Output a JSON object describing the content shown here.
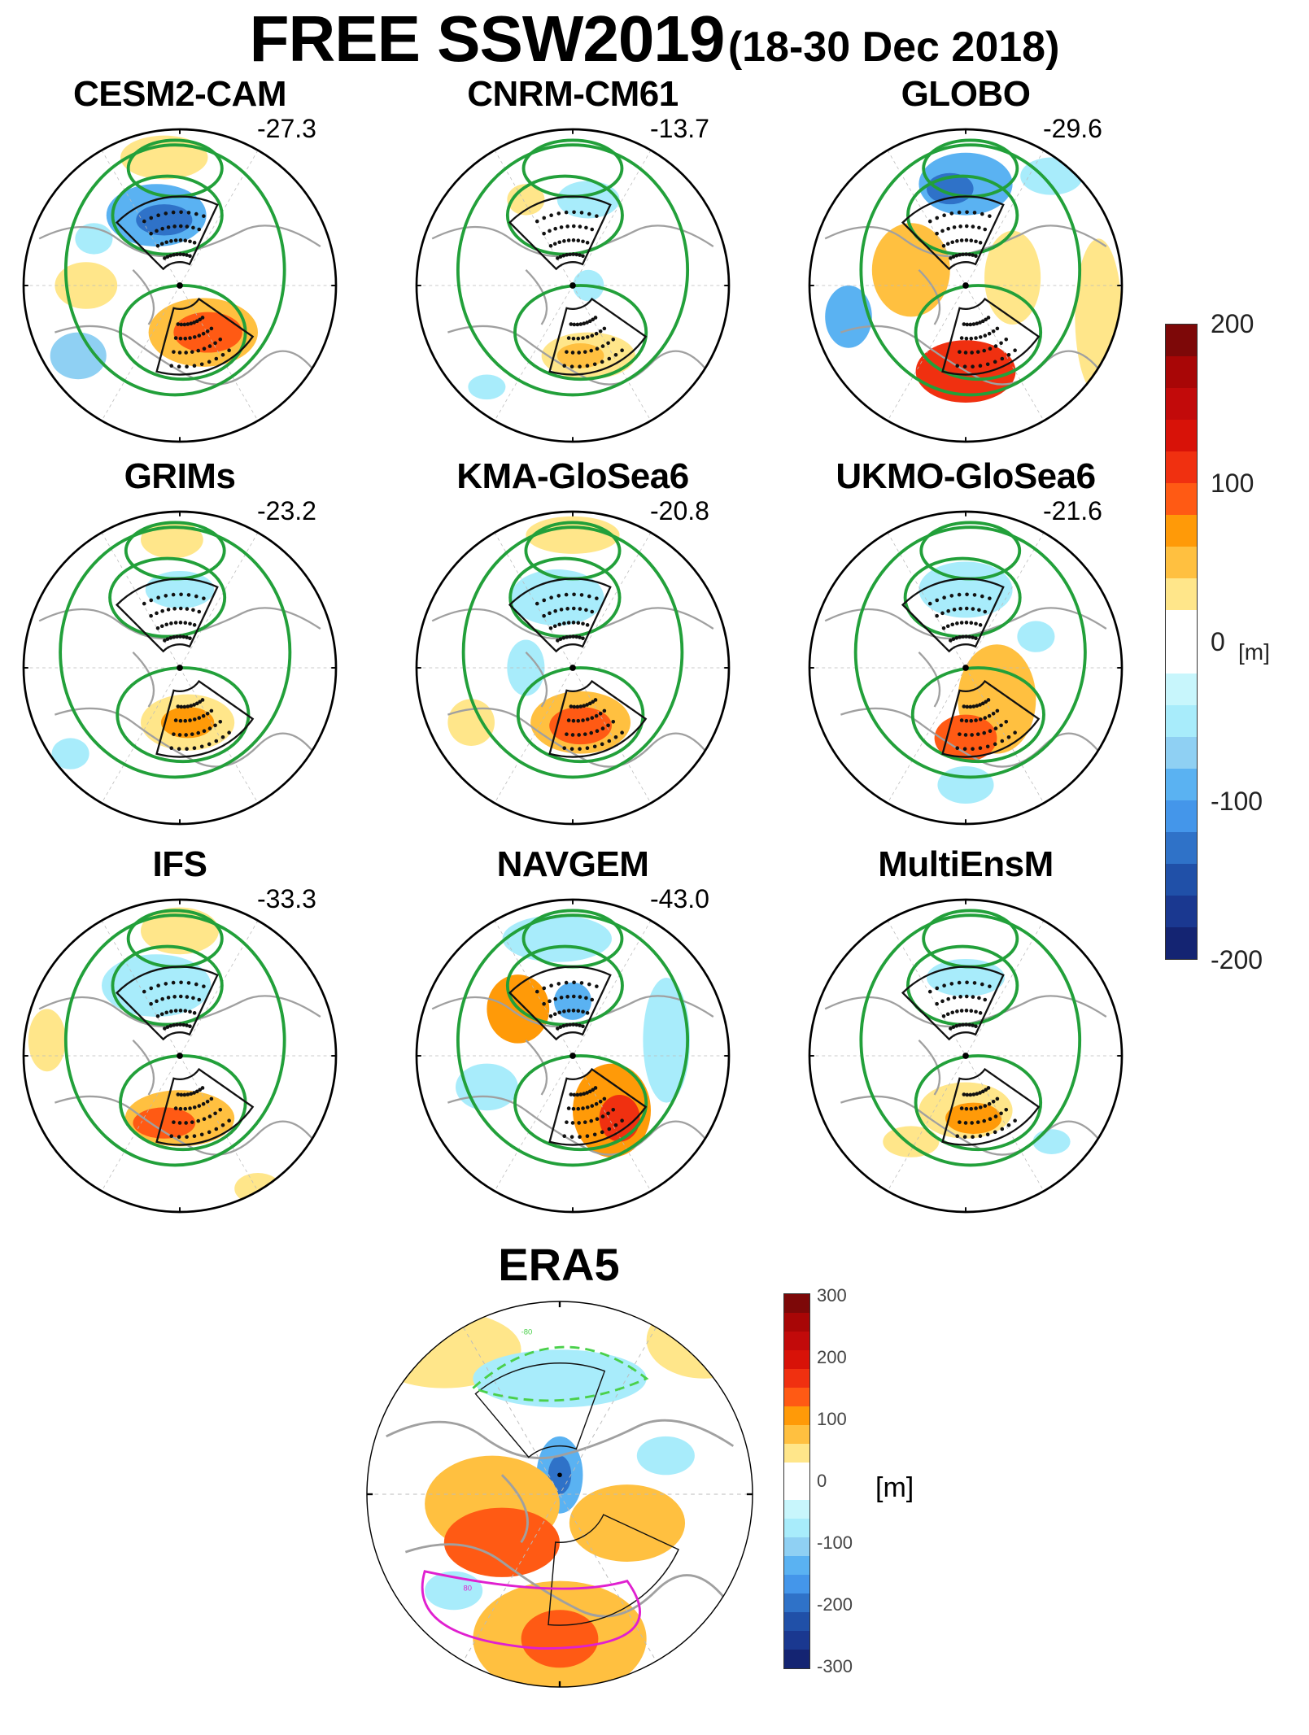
{
  "figure": {
    "title_main": "FREE SSW2019",
    "title_sub": "(18-30 Dec 2018)"
  },
  "panels": [
    {
      "title": "CESM2-CAM",
      "value": "-27.3"
    },
    {
      "title": "CNRM-CM61",
      "value": "-13.7"
    },
    {
      "title": "GLOBO",
      "value": "-29.6"
    },
    {
      "title": "GRIMs",
      "value": "-23.2"
    },
    {
      "title": "KMA-GloSea6",
      "value": "-20.8"
    },
    {
      "title": "UKMO-GloSea6",
      "value": "-21.6"
    },
    {
      "title": "IFS",
      "value": "-33.3"
    },
    {
      "title": "NAVGEM",
      "value": "-43.0"
    },
    {
      "title": "MultiEnsM",
      "value": ""
    }
  ],
  "colorbar_models": {
    "ticks": [
      "200",
      "100",
      "0",
      "-100",
      "-200"
    ],
    "unit": "[m]",
    "colors": [
      "#7d0808",
      "#a80606",
      "#c20a0a",
      "#d81208",
      "#f03010",
      "#ff5a14",
      "#ff9a08",
      "#ffc040",
      "#ffe68a",
      "#ffffff",
      "#ffffff",
      "#c8f6fc",
      "#a8ecfb",
      "#8fd0f3",
      "#5ab2f2",
      "#4496ea",
      "#2f72c8",
      "#2050a8",
      "#1a3890",
      "#142472"
    ]
  },
  "era5": {
    "title": "ERA5",
    "contour_labels": [
      "-80",
      "80"
    ],
    "colorbar": {
      "ticks": [
        "300",
        "200",
        "100",
        "0",
        "-100",
        "-200",
        "-300"
      ],
      "unit": "[m]"
    }
  }
}
